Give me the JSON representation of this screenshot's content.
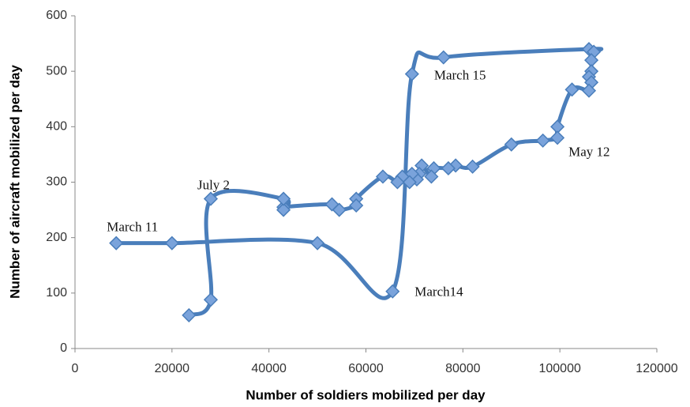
{
  "chart_data": {
    "type": "scatter",
    "x_label": "Number of soldiers mobilized per day",
    "y_label": "Number of aircraft mobilized per day",
    "x": [
      8500,
      20000,
      50000,
      65500,
      69500,
      76000,
      106000,
      107000,
      106500,
      106500,
      106000,
      106500,
      106000,
      102500,
      99500,
      99500,
      96500,
      90000,
      82000,
      78500,
      77000,
      74000,
      73500,
      71500,
      71000,
      70500,
      69500,
      69000,
      67500,
      66500,
      63500,
      58000,
      58000,
      54500,
      53000,
      43000,
      43000,
      43000,
      28000,
      28000,
      23500
    ],
    "values": [
      190,
      190,
      190,
      103,
      495,
      525,
      540,
      535,
      520,
      500,
      490,
      480,
      465,
      467,
      400,
      380,
      375,
      368,
      328,
      330,
      325,
      325,
      310,
      330,
      315,
      305,
      315,
      300,
      310,
      300,
      310,
      270,
      258,
      250,
      260,
      255,
      250,
      270,
      270,
      88,
      60
    ],
    "color": "#4a7ebb",
    "marker_color": "#7aa3db",
    "annotations": [
      "March 11",
      "March14",
      "March 15",
      "May 12",
      "July 2"
    ],
    "xlim": [
      0,
      120000
    ],
    "xticks": [
      0,
      20000,
      40000,
      60000,
      80000,
      100000,
      120000
    ],
    "ylim": [
      0,
      600
    ],
    "yticks": [
      0,
      100,
      200,
      300,
      400,
      500,
      600
    ],
    "smooth": true
  }
}
